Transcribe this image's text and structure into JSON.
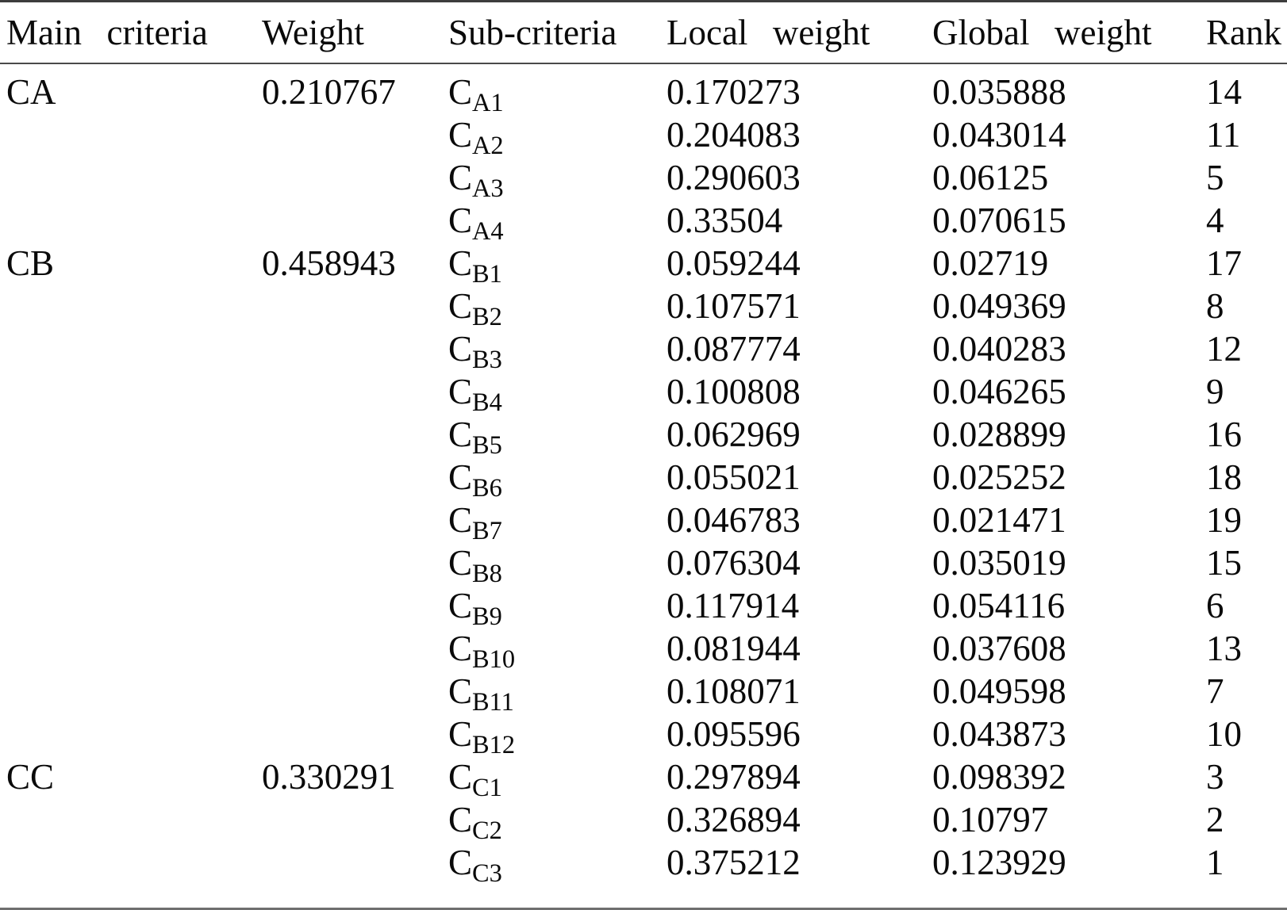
{
  "colors": {
    "text": "#0a0a0a",
    "rule_top": "#3d3d3d",
    "rule_header": "#4a4a4a",
    "rule_bottom": "#6f6f6f",
    "background": "#ffffff"
  },
  "table": {
    "headers": [
      "Main criteria",
      "Weight",
      "Sub-criteria",
      "Local weight",
      "Global weight",
      "Rank"
    ],
    "rows": [
      {
        "main": "CA",
        "weight": "0.210767",
        "sub": {
          "base": "C",
          "script": "A1"
        },
        "local": "0.170273",
        "global": "0.035888",
        "rank": "14"
      },
      {
        "main": "",
        "weight": "",
        "sub": {
          "base": "C",
          "script": "A2"
        },
        "local": "0.204083",
        "global": "0.043014",
        "rank": "11"
      },
      {
        "main": "",
        "weight": "",
        "sub": {
          "base": "C",
          "script": "A3"
        },
        "local": "0.290603",
        "global": "0.06125",
        "rank": "5"
      },
      {
        "main": "",
        "weight": "",
        "sub": {
          "base": "C",
          "script": "A4"
        },
        "local": "0.33504",
        "global": "0.070615",
        "rank": "4"
      },
      {
        "main": "CB",
        "weight": "0.458943",
        "sub": {
          "base": "C",
          "script": "B1"
        },
        "local": "0.059244",
        "global": "0.02719",
        "rank": "17"
      },
      {
        "main": "",
        "weight": "",
        "sub": {
          "base": "C",
          "script": "B2"
        },
        "local": "0.107571",
        "global": "0.049369",
        "rank": "8"
      },
      {
        "main": "",
        "weight": "",
        "sub": {
          "base": "C",
          "script": "B3"
        },
        "local": "0.087774",
        "global": "0.040283",
        "rank": "12"
      },
      {
        "main": "",
        "weight": "",
        "sub": {
          "base": "C",
          "script": "B4"
        },
        "local": "0.100808",
        "global": "0.046265",
        "rank": "9"
      },
      {
        "main": "",
        "weight": "",
        "sub": {
          "base": "C",
          "script": "B5"
        },
        "local": "0.062969",
        "global": "0.028899",
        "rank": "16"
      },
      {
        "main": "",
        "weight": "",
        "sub": {
          "base": "C",
          "script": "B6"
        },
        "local": "0.055021",
        "global": "0.025252",
        "rank": "18"
      },
      {
        "main": "",
        "weight": "",
        "sub": {
          "base": "C",
          "script": "B7"
        },
        "local": "0.046783",
        "global": "0.021471",
        "rank": "19"
      },
      {
        "main": "",
        "weight": "",
        "sub": {
          "base": "C",
          "script": "B8"
        },
        "local": "0.076304",
        "global": "0.035019",
        "rank": "15"
      },
      {
        "main": "",
        "weight": "",
        "sub": {
          "base": "C",
          "script": "B9"
        },
        "local": "0.117914",
        "global": "0.054116",
        "rank": "6"
      },
      {
        "main": "",
        "weight": "",
        "sub": {
          "base": "C",
          "script": "B10"
        },
        "local": "0.081944",
        "global": "0.037608",
        "rank": "13"
      },
      {
        "main": "",
        "weight": "",
        "sub": {
          "base": "C",
          "script": "B11"
        },
        "local": "0.108071",
        "global": "0.049598",
        "rank": "7"
      },
      {
        "main": "",
        "weight": "",
        "sub": {
          "base": "C",
          "script": "B12"
        },
        "local": "0.095596",
        "global": "0.043873",
        "rank": "10"
      },
      {
        "main": "CC",
        "weight": "0.330291",
        "sub": {
          "base": "C",
          "script": "C1"
        },
        "local": "0.297894",
        "global": "0.098392",
        "rank": "3"
      },
      {
        "main": "",
        "weight": "",
        "sub": {
          "base": "C",
          "script": "C2"
        },
        "local": "0.326894",
        "global": "0.10797",
        "rank": "2"
      },
      {
        "main": "",
        "weight": "",
        "sub": {
          "base": "C",
          "script": "C3"
        },
        "local": "0.375212",
        "global": "0.123929",
        "rank": "1"
      }
    ]
  }
}
